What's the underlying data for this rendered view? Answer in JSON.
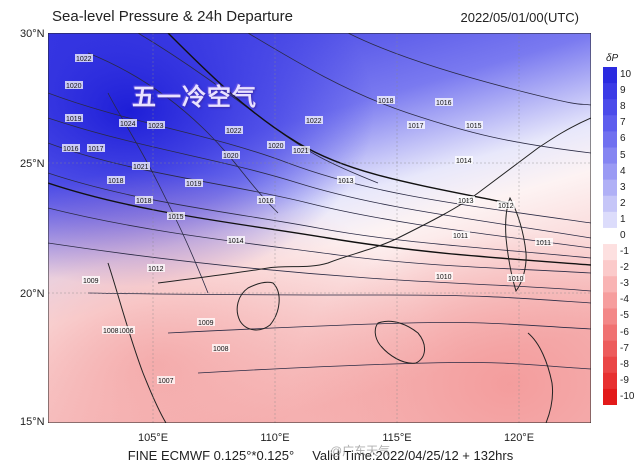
{
  "header": {
    "title": "Sea-level Pressure & 24h Departure",
    "datetime": "2022/05/01/00(UTC)"
  },
  "map": {
    "annotation": "五一冷空气",
    "lat_labels": [
      "30°N",
      "25°N",
      "20°N",
      "15°N"
    ],
    "lon_labels": [
      "105°E",
      "110°E",
      "115°E",
      "120°E"
    ],
    "isobar_labels": [
      "1022",
      "1020",
      "1019",
      "1017",
      "1024",
      "1023",
      "1022",
      "1022",
      "1021",
      "1020",
      "1019",
      "1018",
      "1016",
      "1021",
      "1020",
      "1018",
      "1017",
      "1016",
      "1015",
      "1014",
      "1013",
      "1012",
      "1011",
      "1011",
      "1010",
      "1010",
      "1009",
      "1008",
      "1007",
      "1006",
      "1009",
      "1008",
      "1012",
      "1015",
      "1018",
      "1016",
      "1014",
      "1013"
    ],
    "colors": {
      "high_departure": "#3d3df0",
      "low_departure": "#f08080",
      "neutral": "#ffffff",
      "coast": "#222222",
      "isobar": "#333333"
    }
  },
  "colorbar": {
    "title": "δP",
    "labels": [
      "10",
      "9",
      "8",
      "7",
      "6",
      "5",
      "4",
      "3",
      "2",
      "1",
      "0",
      "-1",
      "-2",
      "-3",
      "-4",
      "-5",
      "-6",
      "-7",
      "-8",
      "-9",
      "-10"
    ],
    "colors": [
      "#2b2be0",
      "#3b3be6",
      "#4b4bea",
      "#5d5dee",
      "#7070f0",
      "#8585f2",
      "#9a9af4",
      "#b0b0f6",
      "#c6c6f8",
      "#dcdcfb",
      "#ffffff",
      "#fde0e0",
      "#fbcaca",
      "#f9b4b4",
      "#f69e9e",
      "#f38888",
      "#f07272",
      "#ed5c5c",
      "#ea4646",
      "#e73030",
      "#e21a1a"
    ]
  },
  "footer": {
    "left": "FINE ECMWF 0.125°*0.125°",
    "right": "Valid Time:2022/04/25/12 + 132hrs"
  },
  "watermark": "@广东天气"
}
